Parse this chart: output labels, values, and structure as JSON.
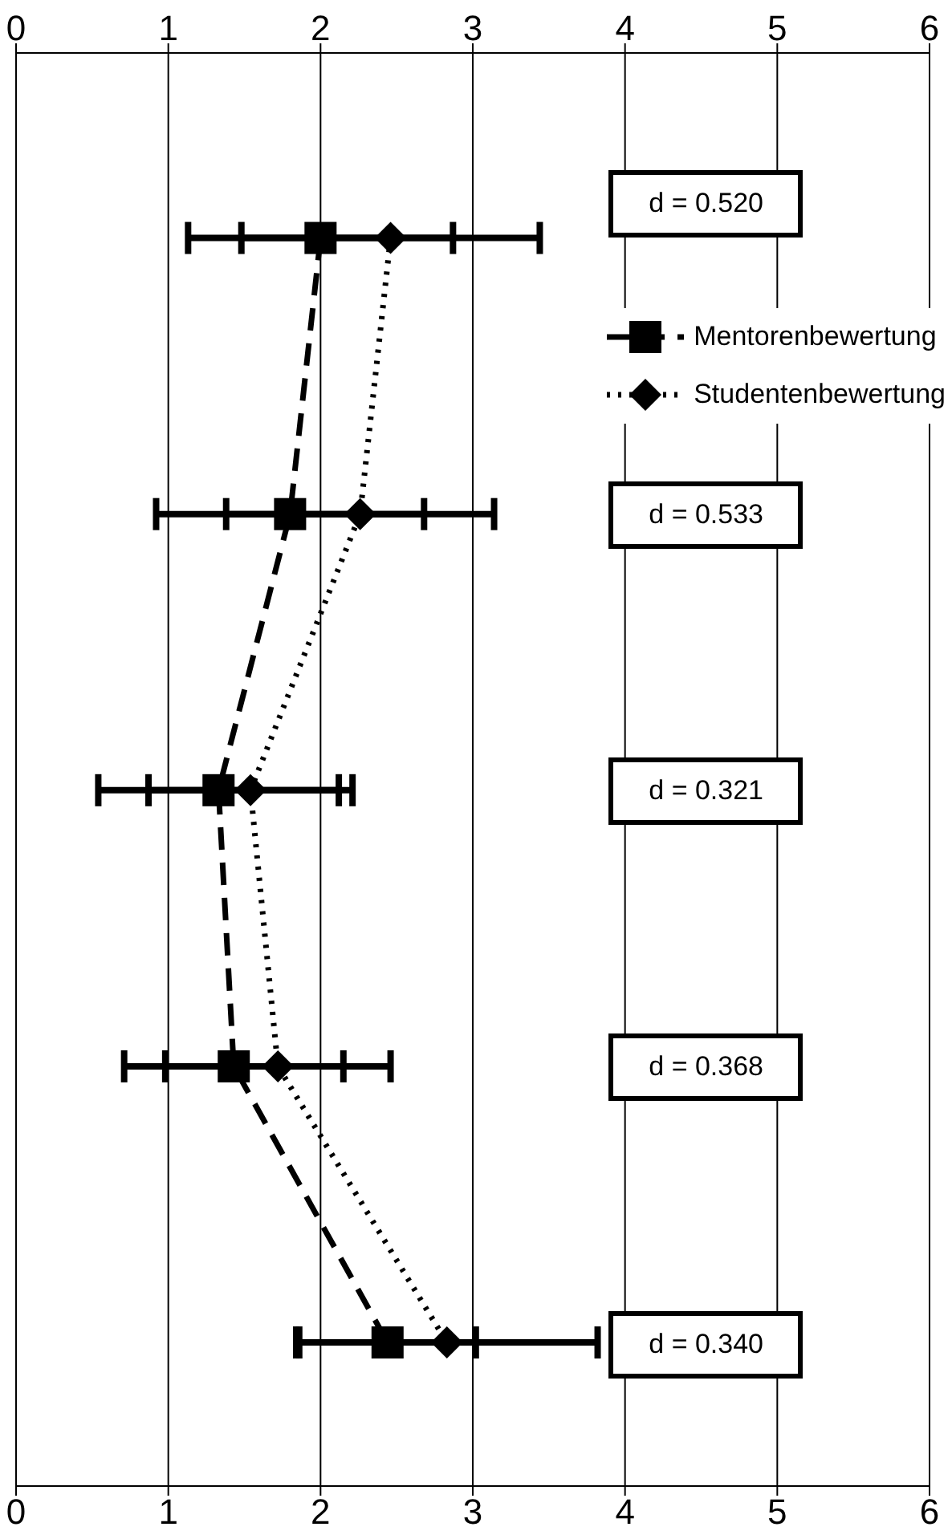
{
  "chart_data": {
    "type": "line",
    "orientation": "horizontal",
    "categories": [
      null,
      null,
      null,
      null,
      null
    ],
    "series": [
      {
        "name": "Mentorenbewertung",
        "color": "#000000",
        "marker": "square",
        "line_style": "dashed",
        "values": [
          2.0,
          1.8,
          1.33,
          1.43,
          2.44
        ],
        "errors": [
          0.87,
          0.88,
          0.79,
          0.72,
          0.58
        ]
      },
      {
        "name": "Studentenbewertung",
        "color": "#000000",
        "marker": "diamond",
        "line_style": "dotted",
        "values": [
          2.46,
          2.26,
          1.54,
          1.72,
          2.83
        ],
        "errors": [
          0.98,
          0.88,
          0.67,
          0.74,
          0.99
        ]
      }
    ],
    "xlim": [
      0,
      6
    ],
    "xticks": [
      0,
      1,
      2,
      3,
      4,
      5,
      6
    ],
    "x2lim": [
      0,
      6
    ],
    "x2ticks": [
      0,
      1,
      2,
      3,
      4,
      5,
      6
    ],
    "tick_labels": "x",
    "grid": "x",
    "legend": "top right",
    "annotations": [
      "d = 0.520",
      "d = 0.533",
      "d = 0.321",
      "d = 0.368",
      "d = 0.340"
    ]
  }
}
